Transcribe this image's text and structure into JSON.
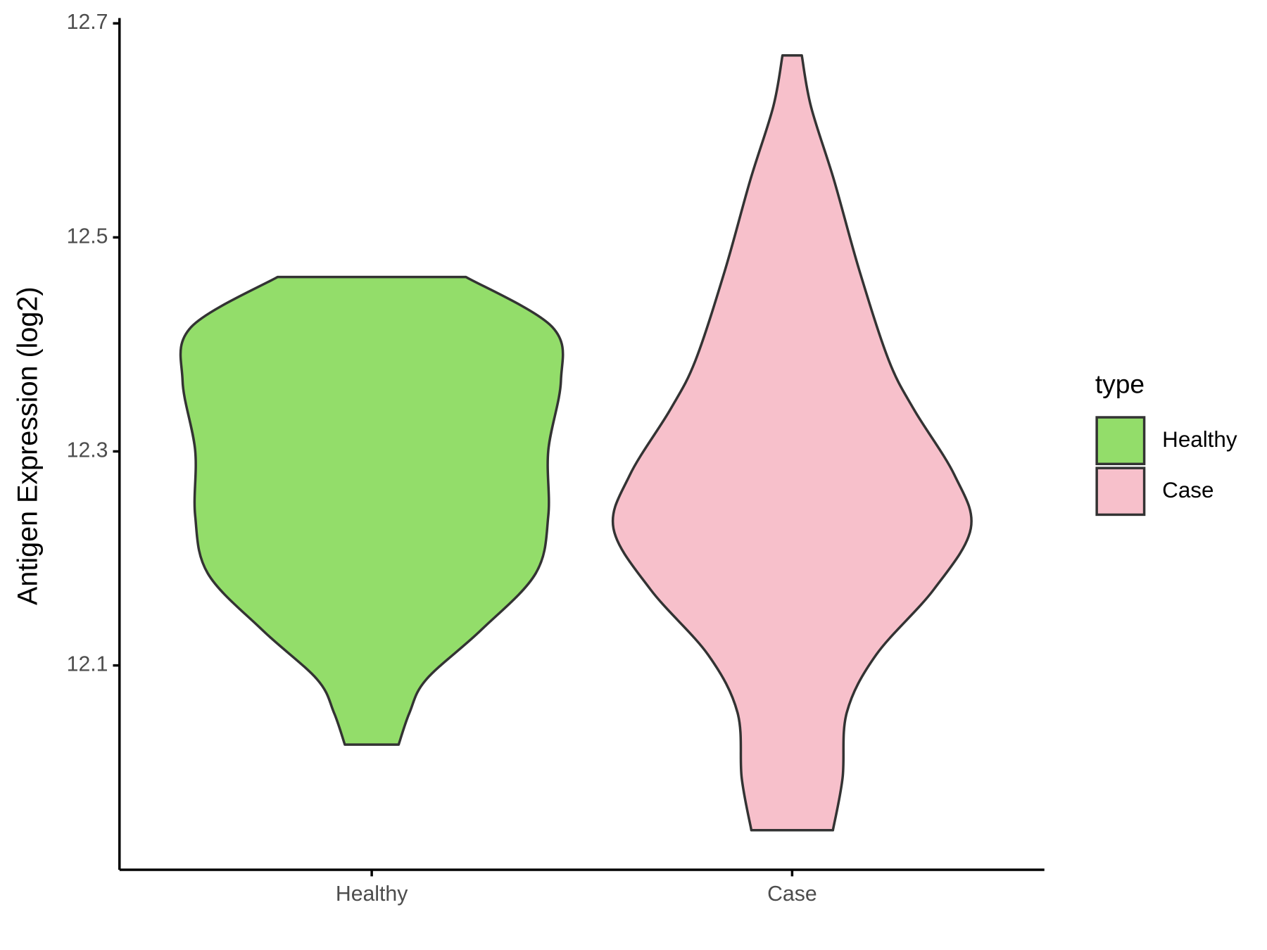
{
  "chart_data": {
    "type": "violin",
    "y_label": "Antigen Expression (log2)",
    "categories": [
      "Healthy",
      "Case"
    ],
    "ylim": [
      11.909,
      12.705
    ],
    "yticks": [
      12.1,
      12.3,
      12.5,
      12.7
    ],
    "legend_title": "type",
    "legend_position": "right",
    "series": [
      {
        "name": "Healthy",
        "color": "#93dd6a",
        "y": [
          12.026,
          12.056,
          12.087,
          12.133,
          12.186,
          12.24,
          12.301,
          12.366,
          12.416,
          12.463
        ],
        "width": [
          0.064,
          0.09,
          0.13,
          0.26,
          0.39,
          0.42,
          0.42,
          0.45,
          0.43,
          0.224
        ]
      },
      {
        "name": "Case",
        "color": "#f7c0cb",
        "y": [
          11.946,
          11.995,
          12.056,
          12.11,
          12.171,
          12.228,
          12.278,
          12.339,
          12.385,
          12.469,
          12.553,
          12.622,
          12.67
        ],
        "width": [
          0.097,
          0.12,
          0.13,
          0.2,
          0.337,
          0.425,
          0.386,
          0.29,
          0.23,
          0.16,
          0.1,
          0.045,
          0.023
        ]
      }
    ]
  }
}
